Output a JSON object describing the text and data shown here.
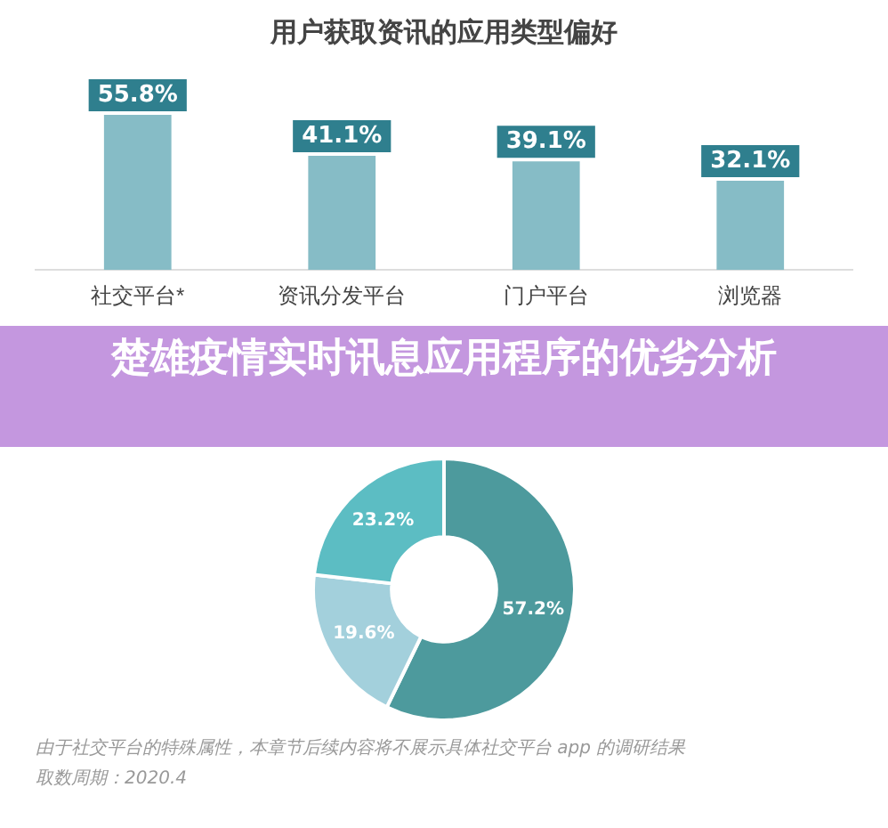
{
  "chart_data": [
    {
      "type": "bar",
      "title": "用户获取资讯的应用类型偏好",
      "categories": [
        "社交平台*",
        "资讯分发平台",
        "门户平台",
        "浏览器"
      ],
      "values": [
        55.8,
        41.1,
        39.1,
        32.1
      ],
      "value_labels": [
        "55.8%",
        "41.1%",
        "39.1%",
        "32.1%"
      ],
      "color": "#86bcc6",
      "grid": false,
      "legend": false
    },
    {
      "type": "donut",
      "title": "楚雄疫情实时讯息应用程序的优劣分析",
      "categories": [
        null,
        null,
        null
      ],
      "values": [
        57.2,
        19.6,
        23.2
      ],
      "value_labels": [
        "57.2%",
        "19.6%",
        "23.2%"
      ],
      "colors": [
        "#4d9a9d",
        "#a3d0dc",
        "#5cbdc3"
      ],
      "legend": false,
      "annotations": [
        "由于社交平台的特殊属性，本章节后续内容将不展示具体社交平台 app 的调研结果",
        "取数周期：2020.4"
      ]
    }
  ]
}
